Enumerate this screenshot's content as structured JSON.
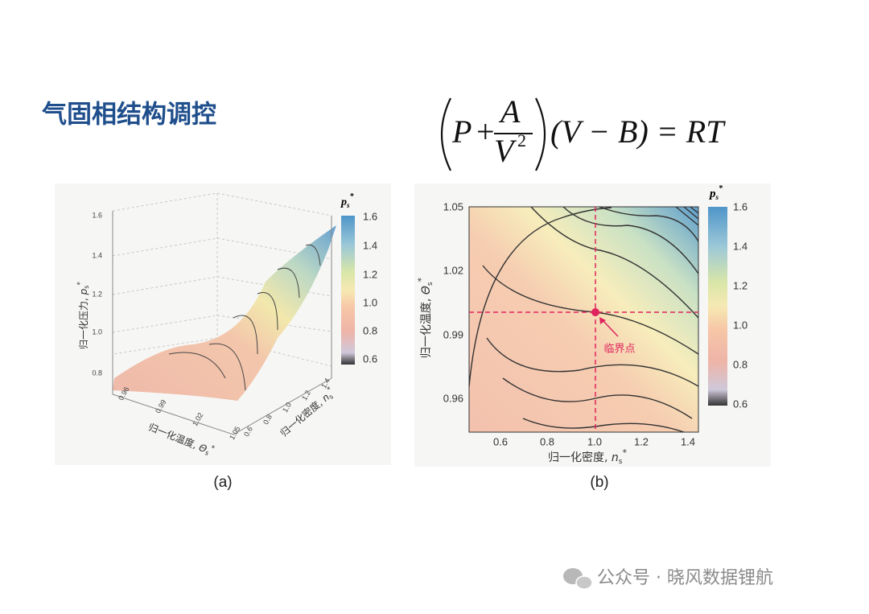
{
  "header": {
    "title": "气固相结构调控"
  },
  "equation": {
    "p": "P",
    "plus": "+",
    "numerator": "A",
    "denominator": "V",
    "exponent": "2",
    "rest": "(V − B) = RT"
  },
  "figures": {
    "a": {
      "caption": "(a)",
      "colorbar": {
        "title": {
          "symbol": "p",
          "sub": "s",
          "sup": "*"
        },
        "ticks": [
          "1.6",
          "1.4",
          "1.2",
          "1.0",
          "0.8",
          "0.6"
        ]
      },
      "z_axis": {
        "label": {
          "text": "归一化压力, ",
          "symbol": "p",
          "sub": "s",
          "sup": "*"
        },
        "ticks": [
          "1.6",
          "1.4",
          "1.2",
          "1.0",
          "0.8"
        ]
      },
      "x_axis": {
        "label": {
          "text": "归一化温度, ",
          "symbol": "Θ",
          "sub": "s",
          "sup": "*"
        },
        "ticks": [
          "0.96",
          "0.99",
          "1.02",
          "1.05"
        ]
      },
      "y_axis": {
        "label": {
          "text": "归一化密度, ",
          "symbol": "n",
          "sub": "s",
          "sup": "*"
        },
        "ticks": [
          "1.4",
          "1.2",
          "1.0",
          "0.8",
          "0.6"
        ]
      }
    },
    "b": {
      "caption": "(b)",
      "annotation": "临界点",
      "colorbar": {
        "title": {
          "symbol": "p",
          "sub": "s",
          "sup": "*"
        },
        "ticks": [
          "1.6",
          "1.4",
          "1.2",
          "1.0",
          "0.8",
          "0.6"
        ]
      },
      "y_axis": {
        "label": {
          "text": "归一化温度, ",
          "symbol": "Θ",
          "sub": "s",
          "sup": "*"
        },
        "ticks": [
          "1.05",
          "1.02",
          "0.99",
          "0.96"
        ]
      },
      "x_axis": {
        "label": {
          "text": "归一化密度, ",
          "symbol": "n",
          "sub": "s",
          "sup": "*"
        },
        "ticks": [
          "0.6",
          "0.8",
          "1.0",
          "1.2",
          "1.4"
        ]
      }
    }
  },
  "footer": {
    "watermark": "公众号 · 晓风数据锂航"
  }
}
